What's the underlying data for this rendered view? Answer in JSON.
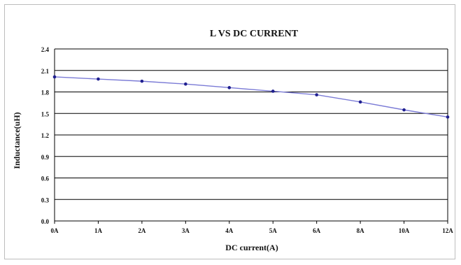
{
  "chart_data": {
    "type": "line",
    "title": "L VS DC CURRENT",
    "xlabel": "DC current(A)",
    "ylabel": "Inductance(uH)",
    "categories": [
      "0A",
      "1A",
      "2A",
      "3A",
      "4A",
      "5A",
      "6A",
      "8A",
      "10A",
      "12A"
    ],
    "series": [
      {
        "values": [
          2.01,
          1.98,
          1.95,
          1.91,
          1.86,
          1.81,
          1.76,
          1.66,
          1.55,
          1.45
        ]
      }
    ],
    "yticks": [
      "0.0",
      "0.3",
      "0.6",
      "0.9",
      "1.2",
      "1.5",
      "1.8",
      "2.1",
      "2.4"
    ],
    "ylim": [
      0,
      2.4
    ],
    "grid": true,
    "legend": "none",
    "colors": {
      "line": "#7b7bd6",
      "marker": "#1f1f8f",
      "grid": "#000000",
      "frame": "#bdbdbd"
    }
  }
}
